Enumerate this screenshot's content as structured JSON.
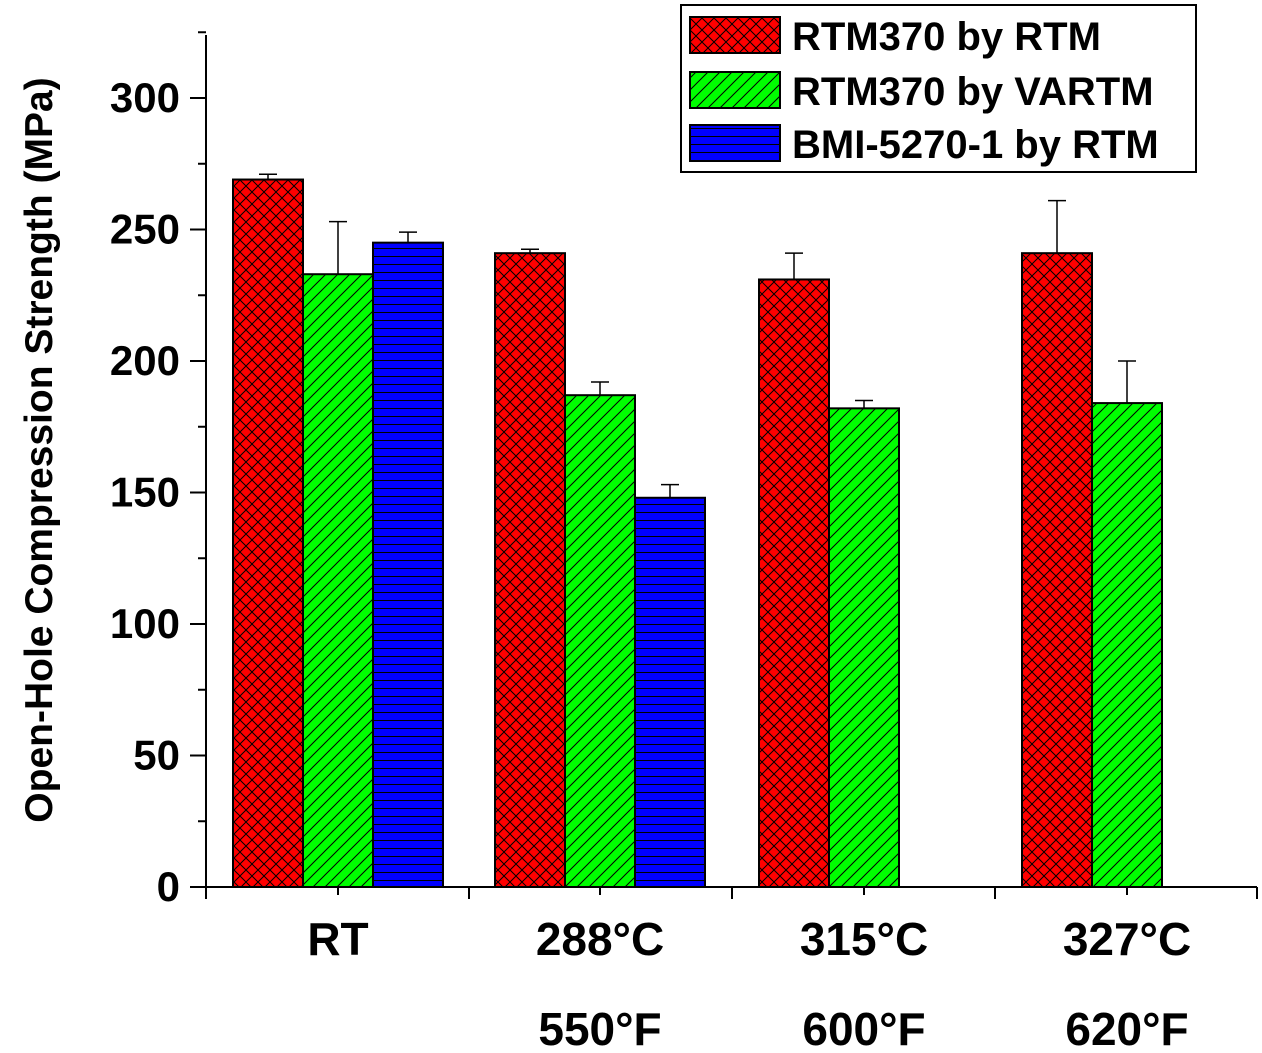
{
  "chart_data": {
    "type": "bar",
    "title": "",
    "ylabel": "Open-Hole Compression Strength (MPa)",
    "xlabel": "",
    "ylim": [
      0,
      325
    ],
    "yticks": [
      0,
      50,
      100,
      150,
      200,
      250,
      300
    ],
    "categories": [
      {
        "line1": "RT",
        "line2": ""
      },
      {
        "line1": "288°C",
        "line2": "550°F"
      },
      {
        "line1": "315°C",
        "line2": "600°F"
      },
      {
        "line1": "327°C",
        "line2": "620°F"
      }
    ],
    "series": [
      {
        "name": "RTM370 by RTM",
        "color": "#ff0000",
        "pattern": "crosshatch",
        "values": [
          269,
          241,
          231,
          241
        ],
        "errors": [
          2,
          1.5,
          10,
          20
        ]
      },
      {
        "name": "RTM370 by VARTM",
        "color": "#00ff00",
        "pattern": "diagonal",
        "values": [
          233,
          187,
          182,
          184
        ],
        "errors": [
          20,
          5,
          3,
          16
        ]
      },
      {
        "name": "BMI-5270-1 by RTM",
        "color": "#0000ff",
        "pattern": "horizontal",
        "values": [
          245,
          148,
          null,
          null
        ],
        "errors": [
          4,
          5,
          null,
          null
        ]
      }
    ],
    "legend": "top-right",
    "grid": false
  }
}
